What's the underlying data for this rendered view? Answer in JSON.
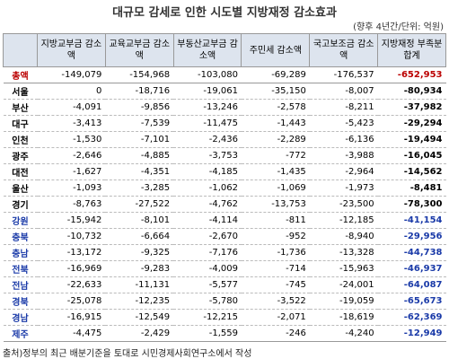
{
  "title": "대규모 감세로 인한 시도별 지방재정 감소효과",
  "unit": "(향후 4년간/단위: 억원)",
  "table": {
    "header": [
      "",
      "지방교부금 감소액",
      "교육교부금 감소액",
      "부동산교부금 감소액",
      "주민세 감소액",
      "국고보조금 감소액",
      "지방재정 부족분 합계"
    ],
    "rows": [
      [
        "총액",
        "-149,079",
        "-154,968",
        "-103,080",
        "-69,289",
        "-176,537",
        "-652,953"
      ],
      [
        "서울",
        "0",
        "-18,716",
        "-19,061",
        "-35,150",
        "-8,007",
        "-80,934"
      ],
      [
        "부산",
        "-4,091",
        "-9,856",
        "-13,246",
        "-2,578",
        "-8,211",
        "-37,982"
      ],
      [
        "대구",
        "-3,413",
        "-7,539",
        "-11,475",
        "-1,443",
        "-5,423",
        "-29,294"
      ],
      [
        "인천",
        "-1,530",
        "-7,101",
        "-2,436",
        "-2,289",
        "-6,136",
        "-19,494"
      ],
      [
        "광주",
        "-2,646",
        "-4,885",
        "-3,753",
        "-772",
        "-3,988",
        "-16,045"
      ],
      [
        "대전",
        "-1,627",
        "-4,351",
        "-4,185",
        "-1,435",
        "-2,964",
        "-14,562"
      ],
      [
        "울산",
        "-1,093",
        "-3,285",
        "-1,062",
        "-1,069",
        "-1,973",
        "-8,481"
      ],
      [
        "경기",
        "-8,763",
        "-27,522",
        "-4,762",
        "-13,753",
        "-23,500",
        "-78,300"
      ],
      [
        "강원",
        "-15,942",
        "-8,101",
        "-4,114",
        "-811",
        "-12,185",
        "-41,154"
      ],
      [
        "충북",
        "-10,732",
        "-6,664",
        "-2,670",
        "-952",
        "-8,940",
        "-29,956"
      ],
      [
        "충남",
        "-13,172",
        "-9,325",
        "-7,176",
        "-1,736",
        "-13,328",
        "-44,738"
      ],
      [
        "전북",
        "-16,969",
        "-9,283",
        "-4,009",
        "-714",
        "-15,963",
        "-46,937"
      ],
      [
        "전남",
        "-22,633",
        "-11,131",
        "-5,577",
        "-745",
        "-24,001",
        "-64,087"
      ],
      [
        "경북",
        "-25,078",
        "-12,235",
        "-5,780",
        "-3,522",
        "-19,059",
        "-65,673"
      ],
      [
        "경남",
        "-16,915",
        "-12,549",
        "-12,215",
        "-2,071",
        "-18,619",
        "-62,369"
      ],
      [
        "제주",
        "-4,475",
        "-2,429",
        "-1,559",
        "-246",
        "-4,240",
        "-12,949"
      ]
    ]
  },
  "source": "출처)정부의 최근 배분기준을 토대로 시민경제사회연구소에서 작성"
}
